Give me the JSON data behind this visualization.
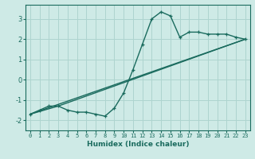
{
  "xlabel": "Humidex (Indice chaleur)",
  "background_color": "#ceeae6",
  "grid_color": "#aed4cf",
  "line_color": "#1a6b5e",
  "xlim": [
    -0.5,
    23.5
  ],
  "ylim": [
    -2.5,
    3.7
  ],
  "xticks": [
    0,
    1,
    2,
    3,
    4,
    5,
    6,
    7,
    8,
    9,
    10,
    11,
    12,
    13,
    14,
    15,
    16,
    17,
    18,
    19,
    20,
    21,
    22,
    23
  ],
  "yticks": [
    -2,
    -1,
    0,
    1,
    2,
    3
  ],
  "line1_x": [
    0,
    1,
    2,
    3,
    4,
    5,
    6,
    7,
    8,
    9,
    10,
    11,
    12,
    13,
    14,
    15,
    16,
    17,
    18,
    19,
    20,
    21,
    22,
    23
  ],
  "line1_y": [
    -1.7,
    -1.5,
    -1.3,
    -1.3,
    -1.5,
    -1.6,
    -1.6,
    -1.7,
    -1.8,
    -1.4,
    -0.65,
    0.5,
    1.75,
    3.0,
    3.35,
    3.15,
    2.1,
    2.35,
    2.35,
    2.25,
    2.25,
    2.25,
    2.1,
    2.0
  ],
  "line2_x": [
    0,
    23
  ],
  "line2_y": [
    -1.7,
    2.0
  ],
  "line3_x": [
    0,
    3,
    23
  ],
  "line3_y": [
    -1.7,
    -1.3,
    2.0
  ]
}
